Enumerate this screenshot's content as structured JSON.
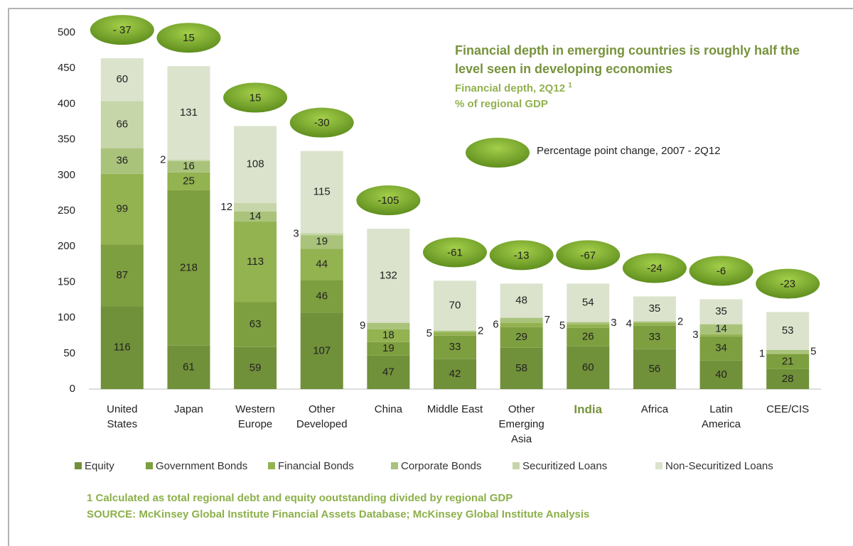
{
  "chart_data": {
    "type": "stacked_bar",
    "title": "Financial depth in emerging countries is roughly half the level seen in developing economies",
    "subtitle": "Financial depth, 2Q12",
    "subtitle_note_marker": "1",
    "units": "% of regional GDP",
    "change_legend": "Percentage point change, 2007 - 2Q12",
    "footnotes": [
      "1 Calculated as total regional debt and equity ooutstanding divided by regional GDP",
      "SOURCE: McKinsey Global Institute Financial Assets Database; McKinsey Global Institute Analysis"
    ],
    "categories": [
      "United States",
      "Japan",
      "Western Europe",
      "Other Developed",
      "China",
      "Middle East",
      "Other Emerging Asia",
      "India",
      "Africa",
      "Latin America",
      "CEE/CIS"
    ],
    "highlight": "India",
    "series": [
      {
        "name": "Equity",
        "color": "#71903a",
        "values": [
          116,
          61,
          59,
          107,
          47,
          42,
          58,
          60,
          56,
          40,
          28
        ]
      },
      {
        "name": "Government Bonds",
        "color": "#7e9f3f",
        "values": [
          87,
          218,
          63,
          46,
          19,
          33,
          29,
          26,
          33,
          34,
          21
        ]
      },
      {
        "name": "Financial Bonds",
        "color": "#93b250",
        "values": [
          99,
          25,
          113,
          44,
          18,
          5,
          6,
          5,
          4,
          3,
          1
        ]
      },
      {
        "name": "Corporate Bonds",
        "color": "#a9c37b",
        "values": [
          36,
          16,
          14,
          19,
          9,
          2,
          7,
          3,
          2,
          14,
          5
        ]
      },
      {
        "name": "Securitized Loans",
        "color": "#c6d6a9",
        "values": [
          66,
          2,
          12,
          3,
          null,
          null,
          null,
          null,
          null,
          null,
          null
        ]
      },
      {
        "name": "Non-Securitized Loans",
        "color": "#dbe3cc",
        "values": [
          60,
          131,
          108,
          115,
          132,
          70,
          48,
          54,
          35,
          35,
          53
        ]
      }
    ],
    "changes": {
      "values": [
        -37,
        15,
        15,
        -30,
        -105,
        -61,
        -13,
        -67,
        -24,
        -6,
        -23
      ],
      "value_labels": [
        "- 37",
        "15",
        "15",
        "-30",
        "-105",
        "-61",
        "-13",
        "-67",
        "-24",
        "-6",
        "-23"
      ]
    },
    "ylim": [
      0,
      500
    ],
    "yticks": [
      0,
      50,
      100,
      150,
      200,
      250,
      300,
      350,
      400,
      450,
      500
    ],
    "grid": false
  }
}
